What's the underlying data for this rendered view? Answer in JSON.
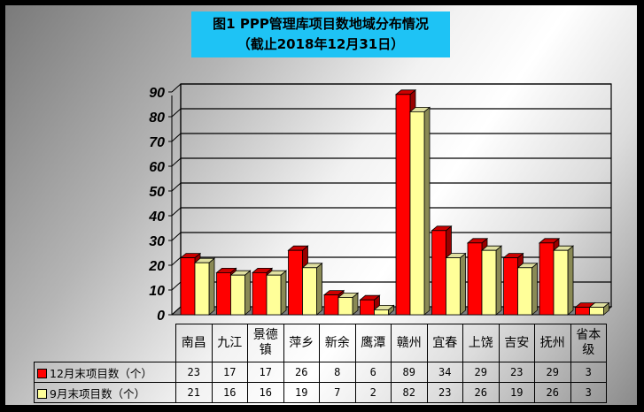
{
  "title": {
    "line1": "图1 PPP管理库项目数地域分布情况",
    "line2": "（截止2018年12月31日）"
  },
  "colors": {
    "title_bg": "#1ec3f5",
    "series1": "#ff0000",
    "series1_side": "#990000",
    "series2": "#ffff99",
    "series2_side": "#8a8a55",
    "floor": "#808080"
  },
  "chart_data": {
    "type": "bar",
    "title": "图1 PPP管理库项目数地域分布情况（截止2018年12月31日）",
    "categories": [
      "南昌",
      "九江",
      "景德镇",
      "萍乡",
      "新余",
      "鹰潭",
      "赣州",
      "宜春",
      "上饶",
      "吉安",
      "抚州",
      "省本级"
    ],
    "series": [
      {
        "name": "12月末项目数（个）",
        "values": [
          23,
          17,
          17,
          26,
          8,
          6,
          89,
          34,
          29,
          23,
          29,
          3
        ]
      },
      {
        "name": "9月末项目数（个）",
        "values": [
          21,
          16,
          16,
          19,
          7,
          2,
          82,
          23,
          26,
          19,
          26,
          3
        ]
      }
    ],
    "yticks": [
      0,
      10,
      20,
      30,
      40,
      50,
      60,
      70,
      80,
      90
    ],
    "ylim": [
      0,
      90
    ],
    "xlabel": "",
    "ylabel": "",
    "grid": true,
    "legend_position": "data-table",
    "style": "3d-clustered-column"
  },
  "table": {
    "headers": [
      "南昌",
      "九江",
      "景德\n镇",
      "萍乡",
      "新余",
      "鹰潭",
      "赣州",
      "宜春",
      "上饶",
      "吉安",
      "抚州",
      "省本\n级"
    ],
    "rows": [
      {
        "label": "12月末项目数（个）",
        "values": [
          "23",
          "17",
          "17",
          "26",
          "8",
          "6",
          "89",
          "34",
          "29",
          "23",
          "29",
          "3"
        ]
      },
      {
        "label": "9月末项目数（个）",
        "values": [
          "21",
          "16",
          "16",
          "19",
          "7",
          "2",
          "82",
          "23",
          "26",
          "19",
          "26",
          "3"
        ]
      }
    ]
  }
}
